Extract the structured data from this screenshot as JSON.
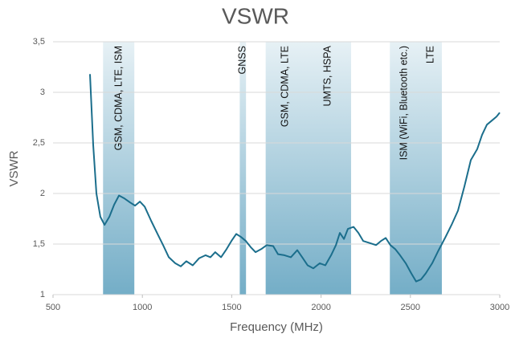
{
  "chart_data": {
    "type": "line",
    "title": "VSWR",
    "x_label": "Frequency (MHz)",
    "y_label": "VSWR",
    "xlim": [
      500,
      3000
    ],
    "ylim": [
      1,
      3.5
    ],
    "xticks": [
      500,
      1000,
      1500,
      2000,
      2500,
      3000
    ],
    "yticks": [
      1,
      {
        "value": 1.5,
        "label": "1,5"
      },
      2,
      {
        "value": 2.5,
        "label": "2,5"
      },
      3,
      {
        "value": 3.5,
        "label": "3,5"
      }
    ],
    "grid": true,
    "bands": [
      {
        "from": 780,
        "to": 955,
        "color": "#5b9fbd"
      },
      {
        "from": 1545,
        "to": 1580,
        "color": "#5b9fbd"
      },
      {
        "from": 1690,
        "to": 2168,
        "color": "#5b9fbd"
      },
      {
        "from": 2385,
        "to": 2676,
        "color": "#5b9fbd"
      }
    ],
    "annotations": [
      "GSM, CDMA, LTE, ISM",
      "GNSS",
      "GSM, CDMA, LTE",
      "UMTS, HSPA",
      "ISM (WiFi, Bluetooth etc.)",
      "LTE"
    ],
    "series": [
      {
        "name": "VSWR",
        "color": "#1b6e8c",
        "x": [
          707,
          725,
          743,
          765,
          788,
          815,
          842,
          869,
          900,
          932,
          959,
          986,
          1013,
          1049,
          1085,
          1116,
          1148,
          1184,
          1215,
          1246,
          1282,
          1318,
          1354,
          1381,
          1408,
          1440,
          1471,
          1498,
          1525,
          1552,
          1579,
          1606,
          1633,
          1665,
          1696,
          1732,
          1759,
          1795,
          1831,
          1867,
          1898,
          1925,
          1957,
          1993,
          2024,
          2056,
          2083,
          2105,
          2128,
          2150,
          2182,
          2209,
          2236,
          2272,
          2308,
          2335,
          2362,
          2388,
          2415,
          2442,
          2474,
          2505,
          2532,
          2559,
          2586,
          2622,
          2658,
          2694,
          2730,
          2766,
          2802,
          2838,
          2874,
          2901,
          2928,
          2955,
          2982,
          3000
        ],
        "values": [
          3.18,
          2.48,
          2.0,
          1.77,
          1.69,
          1.77,
          1.89,
          1.98,
          1.95,
          1.91,
          1.88,
          1.92,
          1.87,
          1.73,
          1.6,
          1.49,
          1.37,
          1.31,
          1.28,
          1.33,
          1.29,
          1.36,
          1.39,
          1.37,
          1.42,
          1.37,
          1.45,
          1.53,
          1.6,
          1.57,
          1.53,
          1.47,
          1.42,
          1.45,
          1.49,
          1.48,
          1.4,
          1.39,
          1.37,
          1.44,
          1.36,
          1.29,
          1.26,
          1.31,
          1.29,
          1.39,
          1.49,
          1.61,
          1.55,
          1.65,
          1.67,
          1.61,
          1.53,
          1.51,
          1.49,
          1.53,
          1.56,
          1.49,
          1.45,
          1.39,
          1.31,
          1.21,
          1.13,
          1.15,
          1.21,
          1.31,
          1.44,
          1.56,
          1.69,
          1.83,
          2.07,
          2.33,
          2.44,
          2.58,
          2.68,
          2.72,
          2.76,
          2.8
        ]
      }
    ]
  }
}
